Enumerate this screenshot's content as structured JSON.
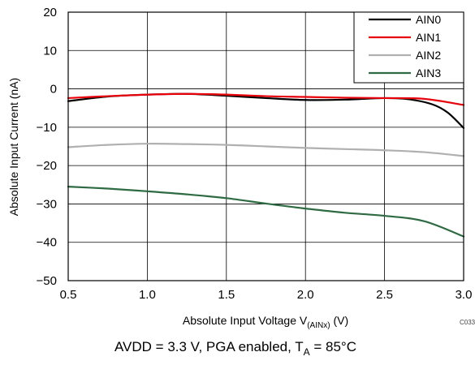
{
  "chart_data": {
    "type": "line",
    "xlabel_main": "Absolute Input Voltage V",
    "xlabel_sub": "(AINx)",
    "xlabel_unit": " (V)",
    "ylabel": "Absolute Input Current (nA)",
    "xlim": [
      0.5,
      3.0
    ],
    "ylim": [
      -50,
      20
    ],
    "xticks": [
      0.5,
      1.0,
      1.5,
      2.0,
      2.5,
      3.0
    ],
    "xtick_labels": [
      "0.5",
      "1.0",
      "1.5",
      "2.0",
      "2.5",
      "3.0"
    ],
    "yticks": [
      20,
      10,
      0,
      -10,
      -20,
      -30,
      -40,
      -50
    ],
    "ytick_labels": [
      "20",
      "10",
      "0",
      "−10",
      "−20",
      "−30",
      "−40",
      "−50"
    ],
    "grid": true,
    "legend_position": "top-right",
    "figure_code": "C033",
    "series": [
      {
        "name": "AIN0",
        "color": "#000000",
        "x": [
          0.5,
          0.75,
          1.0,
          1.25,
          1.5,
          1.75,
          2.0,
          2.25,
          2.5,
          2.65,
          2.8,
          2.9,
          3.0
        ],
        "y": [
          -3.2,
          -2.0,
          -1.5,
          -1.3,
          -1.8,
          -2.4,
          -2.9,
          -2.8,
          -2.4,
          -2.7,
          -4.0,
          -6.2,
          -10.2
        ]
      },
      {
        "name": "AIN1",
        "color": "#e8000b",
        "x": [
          0.5,
          0.75,
          1.0,
          1.25,
          1.5,
          1.75,
          2.0,
          2.25,
          2.5,
          2.75,
          3.0
        ],
        "y": [
          -2.4,
          -1.9,
          -1.5,
          -1.3,
          -1.5,
          -1.9,
          -2.1,
          -2.3,
          -2.4,
          -2.6,
          -4.2
        ]
      },
      {
        "name": "AIN2",
        "color": "#b0b0b0",
        "x": [
          0.5,
          0.75,
          1.0,
          1.25,
          1.5,
          1.75,
          2.0,
          2.25,
          2.5,
          2.75,
          3.0
        ],
        "y": [
          -15.2,
          -14.6,
          -14.3,
          -14.4,
          -14.6,
          -15.0,
          -15.4,
          -15.7,
          -16.0,
          -16.5,
          -17.5
        ]
      },
      {
        "name": "AIN3",
        "color": "#2e6b42",
        "x": [
          0.5,
          0.75,
          1.0,
          1.25,
          1.5,
          1.75,
          2.0,
          2.25,
          2.5,
          2.75,
          3.0
        ],
        "y": [
          -25.5,
          -26.0,
          -26.7,
          -27.5,
          -28.5,
          -29.9,
          -31.2,
          -32.3,
          -33.1,
          -34.5,
          -38.5
        ]
      }
    ]
  },
  "caption": {
    "prefix": "AVDD = 3.3 V, PGA enabled, T",
    "sub": "A",
    "suffix": " = 85°C"
  }
}
